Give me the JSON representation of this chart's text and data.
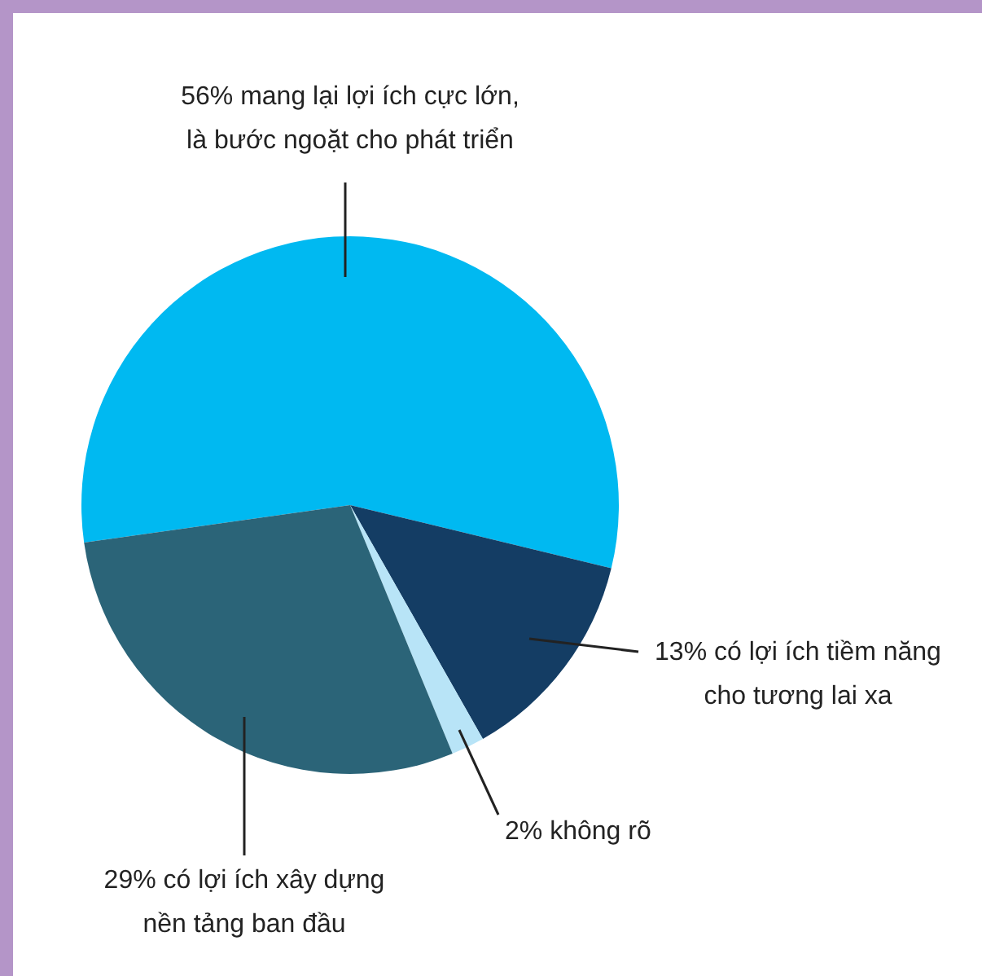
{
  "chart_data": {
    "type": "pie",
    "categories": [
      "mang lại lợi ích cực lớn,\nlà bước ngoặt cho phát triển",
      "có lợi ích tiềm năng\ncho tương lai xa",
      "không rõ",
      "có lợi ích xây dựng\nnền tảng ban đầu"
    ],
    "values": [
      56,
      13,
      2,
      29
    ],
    "value_labels": [
      "56%",
      "13%",
      "2%",
      "29%"
    ],
    "colors": [
      "#00b9f1",
      "#143d64",
      "#b8e4f7",
      "#2b6478"
    ]
  }
}
